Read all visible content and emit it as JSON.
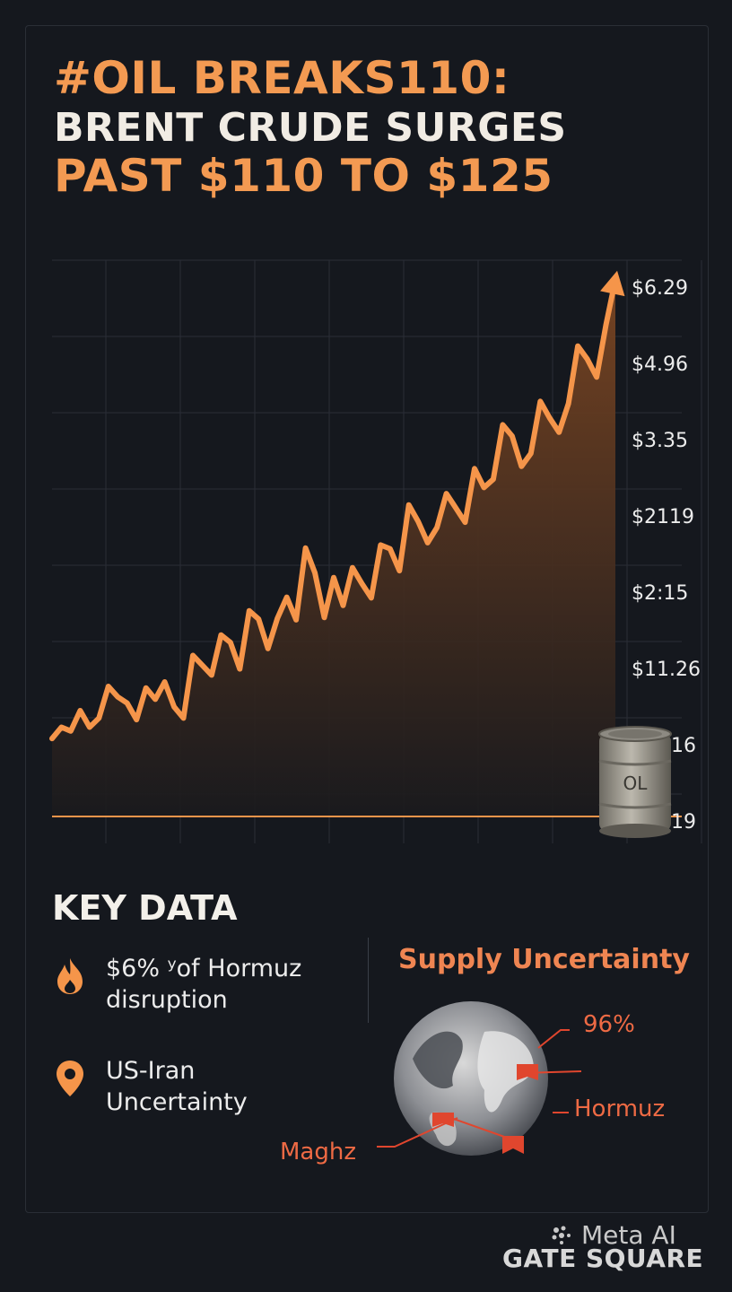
{
  "headline": {
    "line1": "#OIL BREAKS110:",
    "line2": "BRENT CRUDE SURGES",
    "line3": "PAST $110 TO $125"
  },
  "chart_data": {
    "type": "area",
    "title": "",
    "xlabel": "",
    "ylabel": "",
    "y_tick_labels": [
      "$6.29",
      "$4.96",
      "$3.35",
      "$2119",
      "$2:15",
      "$11.26",
      "16",
      "19"
    ],
    "y_index_range": [
      0,
      7
    ],
    "grid": true,
    "colors": {
      "line": "#f5954a",
      "fill_top": "#7a4522",
      "fill_bottom": "#1a1a1d"
    },
    "series": [
      {
        "values": [
          1.03,
          1.18,
          1.13,
          1.4,
          1.18,
          1.3,
          1.72,
          1.58,
          1.5,
          1.28,
          1.7,
          1.55,
          1.78,
          1.45,
          1.3,
          2.13,
          2.0,
          1.87,
          2.4,
          2.3,
          1.95,
          2.72,
          2.61,
          2.22,
          2.62,
          2.9,
          2.6,
          3.55,
          3.22,
          2.63,
          3.16,
          2.79,
          3.29,
          3.08,
          2.89,
          3.59,
          3.54,
          3.25,
          4.12,
          3.9,
          3.62,
          3.82,
          4.27,
          4.08,
          3.89,
          4.6,
          4.35,
          4.46,
          5.18,
          5.03,
          4.63,
          4.8,
          5.49,
          5.27,
          5.08,
          5.46,
          6.22,
          6.05,
          5.81,
          6.5,
          7.1
        ]
      }
    ]
  },
  "barrel": {
    "label": "OL"
  },
  "key_data": {
    "title": "KEY DATA",
    "items": [
      {
        "icon": "flame-icon",
        "line1": "$6% ʸof Hormuz",
        "line2": "disruption"
      },
      {
        "icon": "location-pin-icon",
        "line1": "US-Iran",
        "line2": "Uncertainty"
      }
    ]
  },
  "supply": {
    "title": "Supply Uncertainty",
    "labels": {
      "percent": "96%",
      "right": "Hormuz",
      "left": "Maghz"
    }
  },
  "watermark": "Meta AI",
  "footer": "GATE SQUARE"
}
